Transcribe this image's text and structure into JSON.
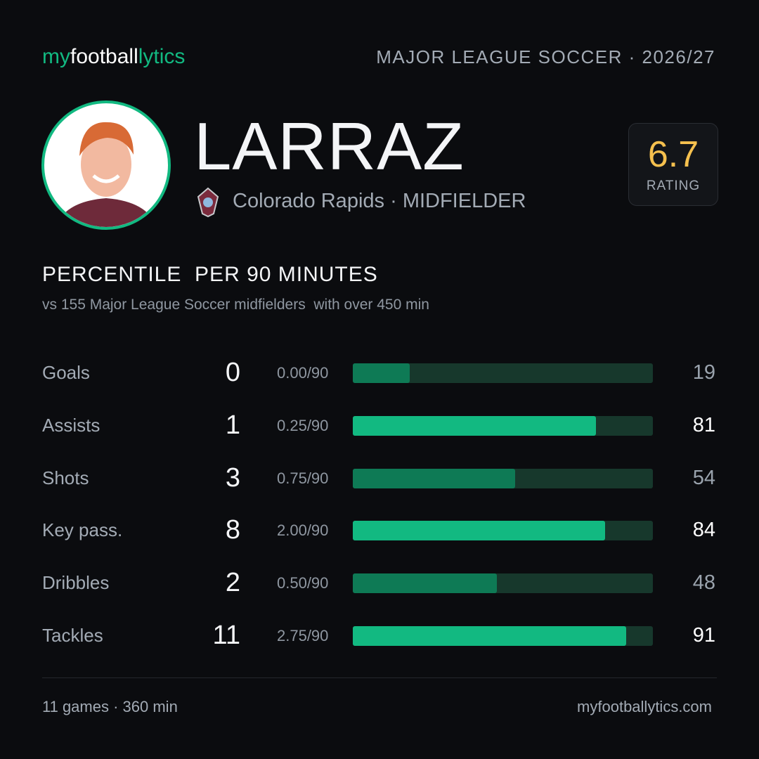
{
  "header": {
    "logo": [
      "my",
      "football",
      "lytics"
    ],
    "competition": "MAJOR LEAGUE SOCCER · 2026/27"
  },
  "player": {
    "name": "LARRAZ",
    "team": "Colorado Rapids",
    "separator": "·",
    "position": "MIDFIELDER",
    "rating": 6.7,
    "rating_label": "RATING"
  },
  "section": {
    "title": "PERCENTILE  PER 90 MINUTES",
    "subtitle": "vs 155 Major League Soccer midfielders  with over 450 min"
  },
  "chart_data": {
    "type": "bar",
    "xlim": [
      0,
      100
    ],
    "track_color": "#17382c",
    "rows": [
      {
        "stat": "Goals",
        "count": 0,
        "per90": "0.00/90",
        "percentile": 19,
        "color": "#0e7a55",
        "label_color": "#9aa3ad"
      },
      {
        "stat": "Assists",
        "count": 1,
        "per90": "0.25/90",
        "percentile": 81,
        "color": "#12b981",
        "label_color": "#ffffff"
      },
      {
        "stat": "Shots",
        "count": 3,
        "per90": "0.75/90",
        "percentile": 54,
        "color": "#0e7a55",
        "label_color": "#9aa3ad"
      },
      {
        "stat": "Key pass.",
        "count": 8,
        "per90": "2.00/90",
        "percentile": 84,
        "color": "#12b981",
        "label_color": "#ffffff"
      },
      {
        "stat": "Dribbles",
        "count": 2,
        "per90": "0.50/90",
        "percentile": 48,
        "color": "#0e7a55",
        "label_color": "#9aa3ad"
      },
      {
        "stat": "Tackles",
        "count": 11,
        "per90": "2.75/90",
        "percentile": 91,
        "color": "#12b981",
        "label_color": "#ffffff"
      }
    ]
  },
  "footer": {
    "games": "11 games · 360 min",
    "site": "myfootballytics.com"
  }
}
